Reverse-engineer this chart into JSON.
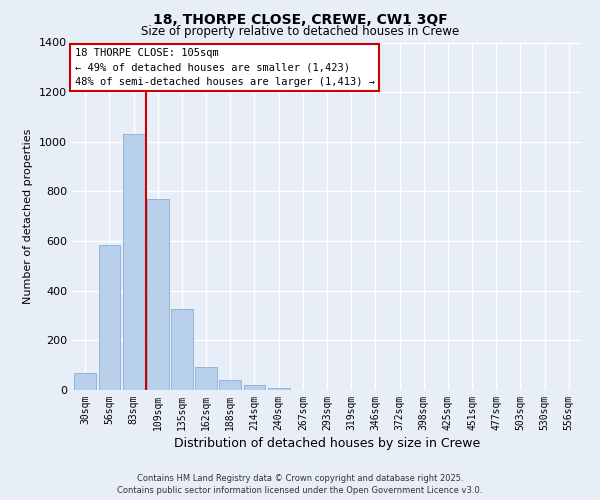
{
  "title": "18, THORPE CLOSE, CREWE, CW1 3QF",
  "subtitle": "Size of property relative to detached houses in Crewe",
  "xlabel": "Distribution of detached houses by size in Crewe",
  "ylabel": "Number of detached properties",
  "categories": [
    "30sqm",
    "56sqm",
    "83sqm",
    "109sqm",
    "135sqm",
    "162sqm",
    "188sqm",
    "214sqm",
    "240sqm",
    "267sqm",
    "293sqm",
    "319sqm",
    "346sqm",
    "372sqm",
    "398sqm",
    "425sqm",
    "451sqm",
    "477sqm",
    "503sqm",
    "530sqm",
    "556sqm"
  ],
  "values": [
    67,
    585,
    1033,
    770,
    325,
    93,
    42,
    22,
    8,
    2,
    0,
    0,
    0,
    0,
    0,
    0,
    0,
    0,
    0,
    0,
    0
  ],
  "bar_color": "#b8d0ea",
  "bar_edge_color": "#88afd4",
  "vline_color": "#cc0000",
  "vline_x_index": 2.5,
  "ylim": [
    0,
    1400
  ],
  "yticks": [
    0,
    200,
    400,
    600,
    800,
    1000,
    1200,
    1400
  ],
  "annotation_title": "18 THORPE CLOSE: 105sqm",
  "annotation_line1": "← 49% of detached houses are smaller (1,423)",
  "annotation_line2": "48% of semi-detached houses are larger (1,413) →",
  "annotation_box_color": "#ffffff",
  "annotation_box_edge": "#cc0000",
  "footer_line1": "Contains HM Land Registry data © Crown copyright and database right 2025.",
  "footer_line2": "Contains public sector information licensed under the Open Government Licence v3.0.",
  "background_color": "#e8eef8",
  "grid_color": "#ffffff"
}
